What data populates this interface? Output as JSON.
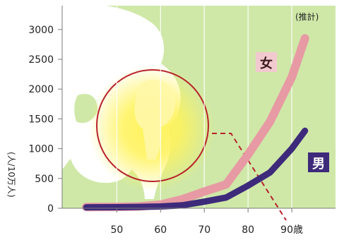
{
  "chart_data": {
    "type": "line",
    "annotation": "(推計)",
    "ylabel": "(人/10万人)",
    "x_unit_suffix": "歳",
    "x_ticks": [
      50,
      60,
      70,
      80,
      90
    ],
    "x_tick_labels": [
      "50",
      "60",
      "70",
      "80",
      "90歳"
    ],
    "y_ticks": [
      0,
      500,
      1000,
      1500,
      2000,
      2500,
      3000
    ],
    "y_tick_labels": [
      "0",
      "500",
      "1000",
      "1500",
      "2000",
      "2500",
      "3000"
    ],
    "xlim": [
      37.5,
      100
    ],
    "ylim": [
      0,
      3400
    ],
    "grid": "x",
    "series": [
      {
        "name": "女",
        "color": "#e79aa3",
        "label_bg": "#f2c9cf",
        "label_fg": "#3a1a1a",
        "x": [
          43,
          50,
          55,
          60,
          65,
          70,
          75,
          80,
          85,
          90,
          93
        ],
        "y": [
          20,
          22,
          30,
          60,
          150,
          280,
          400,
          900,
          1450,
          2200,
          2850
        ]
      },
      {
        "name": "男",
        "color": "#3d2a7a",
        "label_bg": "#3d2a7a",
        "label_fg": "#ffffff",
        "x": [
          43,
          50,
          55,
          60,
          65,
          70,
          75,
          80,
          85,
          90,
          93
        ],
        "y": [
          15,
          18,
          22,
          30,
          50,
          110,
          180,
          380,
          600,
          1000,
          1300
        ]
      }
    ],
    "colors": {
      "plot_bg": "#cfe8a8",
      "pelvis": "#ffffff",
      "glow_center": "#fff35a",
      "circle": "#b8232c",
      "dashed": "#b8232c"
    },
    "illustration": "hip-joint-highlight"
  }
}
